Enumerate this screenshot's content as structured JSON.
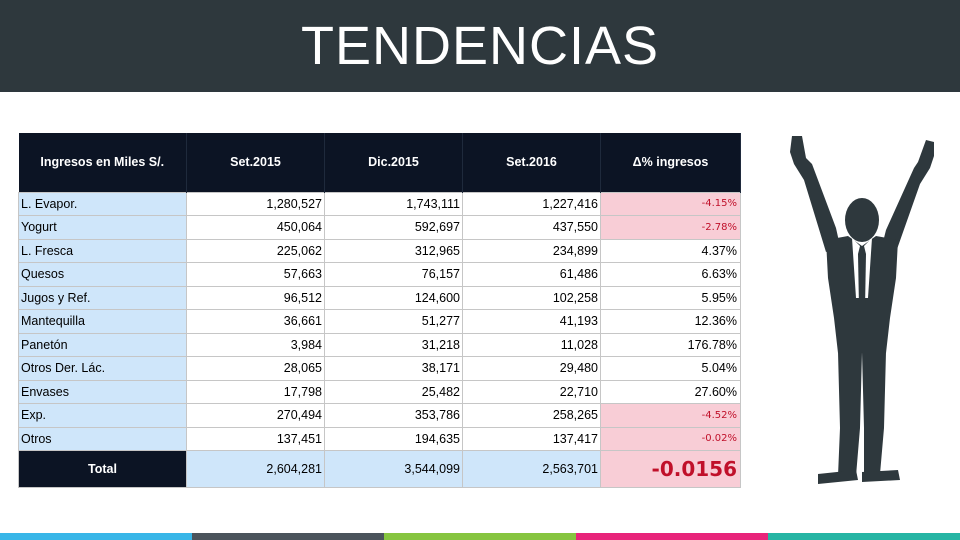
{
  "header": {
    "title": "TENDENCIAS"
  },
  "table": {
    "columns": [
      "Ingresos en Miles S/.",
      "Set.2015",
      "Dic.2015",
      "Set.2016",
      "Δ% ingresos"
    ],
    "rows": [
      {
        "category": "L. Evapor.",
        "set2015": "1,280,527",
        "dic2015": "1,743,111",
        "set2016": "1,227,416",
        "delta": "-4.15%",
        "negative": true
      },
      {
        "category": "Yogurt",
        "set2015": "450,064",
        "dic2015": "592,697",
        "set2016": "437,550",
        "delta": "-2.78%",
        "negative": true
      },
      {
        "category": "L. Fresca",
        "set2015": "225,062",
        "dic2015": "312,965",
        "set2016": "234,899",
        "delta": "4.37%",
        "negative": false
      },
      {
        "category": "Quesos",
        "set2015": "57,663",
        "dic2015": "76,157",
        "set2016": "61,486",
        "delta": "6.63%",
        "negative": false
      },
      {
        "category": "Jugos y Ref.",
        "set2015": "96,512",
        "dic2015": "124,600",
        "set2016": "102,258",
        "delta": "5.95%",
        "negative": false
      },
      {
        "category": "Mantequilla",
        "set2015": "36,661",
        "dic2015": "51,277",
        "set2016": "41,193",
        "delta": "12.36%",
        "negative": false
      },
      {
        "category": "Panetón",
        "set2015": "3,984",
        "dic2015": "31,218",
        "set2016": "11,028",
        "delta": "176.78%",
        "negative": false
      },
      {
        "category": "Otros Der. Lác.",
        "set2015": "28,065",
        "dic2015": "38,171",
        "set2016": "29,480",
        "delta": "5.04%",
        "negative": false
      },
      {
        "category": "Envases",
        "set2015": "17,798",
        "dic2015": "25,482",
        "set2016": "22,710",
        "delta": "27.60%",
        "negative": false
      },
      {
        "category": "Exp.",
        "set2015": "270,494",
        "dic2015": "353,786",
        "set2016": "258,265",
        "delta": "-4.52%",
        "negative": true
      },
      {
        "category": "Otros",
        "set2015": "137,451",
        "dic2015": "194,635",
        "set2016": "137,417",
        "delta": "-0.02%",
        "negative": true
      }
    ],
    "total": {
      "category": "Total",
      "set2015": "2,604,281",
      "dic2015": "3,544,099",
      "set2016": "2,563,701",
      "delta": "-0.0156"
    }
  },
  "illustration": {
    "icon": "celebrating-businessman-icon",
    "color": "#2e383d"
  },
  "footer": {
    "colors": [
      "#38b6e8",
      "#4b545c",
      "#86c540",
      "#e8247a",
      "#26b5a4"
    ]
  },
  "colors": {
    "header_bg": "#2e383d",
    "table_header_bg": "#0c1424",
    "category_bg": "#cfe6fa",
    "negative_bg": "#f8cdd6",
    "negative_text": "#c0102a"
  }
}
